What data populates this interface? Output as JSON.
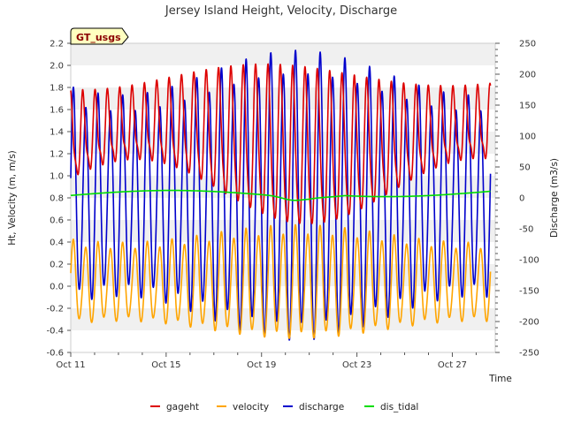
{
  "chart_data": {
    "type": "line",
    "title": "Jersey Island Height, Velocity, Discharge",
    "badge": "GT_usgs",
    "xlabel": "Time",
    "ylabel_left": "Ht, Velocity (m, m/s)",
    "ylabel_right": "Discharge (m3/s)",
    "x_range_days": [
      0,
      17.8
    ],
    "x_ticks": [
      {
        "day": 0,
        "label": "Oct 11"
      },
      {
        "day": 4,
        "label": "Oct 15"
      },
      {
        "day": 8,
        "label": "Oct 19"
      },
      {
        "day": 12,
        "label": "Oct 23"
      },
      {
        "day": 16,
        "label": "Oct 27"
      }
    ],
    "ylim_left": [
      -0.6,
      2.2
    ],
    "yticks_left": [
      "-0.6",
      "-0.4",
      "-0.2",
      "0.0",
      "0.2",
      "0.4",
      "0.6",
      "0.8",
      "1.0",
      "1.2",
      "1.4",
      "1.6",
      "1.8",
      "2.0",
      "2.2"
    ],
    "ylim_right": [
      -250,
      250
    ],
    "yticks_right": [
      "-250",
      "-200",
      "-150",
      "-100",
      "-50",
      "0",
      "50",
      "100",
      "150",
      "200",
      "250"
    ],
    "grid": "horizontal bands",
    "legend_position": "bottom",
    "series": [
      {
        "name": "gageht",
        "color": "#dd0000",
        "axis": "left"
      },
      {
        "name": "velocity",
        "color": "#ffa500",
        "axis": "left"
      },
      {
        "name": "discharge",
        "color": "#0000cc",
        "axis": "right"
      },
      {
        "name": "dis_tidal",
        "color": "#00dd00",
        "axis": "right"
      }
    ]
  }
}
